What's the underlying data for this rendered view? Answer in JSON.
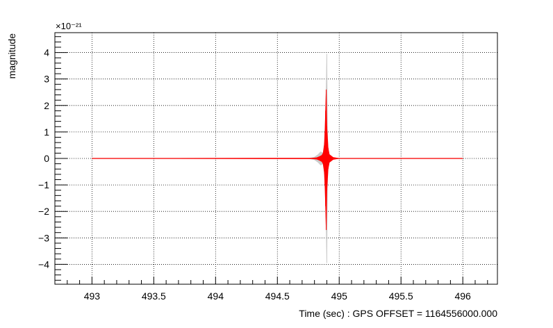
{
  "chart_data": {
    "type": "line",
    "title": "",
    "xlabel": "Time (sec) : GPS OFFSET = 1164556000.000",
    "ylabel": "magnitude",
    "y_exponent_label": "×10⁻²¹",
    "xlim": [
      492.7,
      496.28
    ],
    "ylim": [
      -4.75,
      4.75
    ],
    "grid": true,
    "x_ticks": [
      493,
      493.5,
      494,
      494.5,
      495,
      495.5,
      496
    ],
    "x_tick_labels": [
      "493",
      "493.5",
      "494",
      "494.5",
      "495",
      "495.5",
      "496"
    ],
    "y_ticks": [
      -4,
      -3,
      -2,
      -1,
      0,
      1,
      2,
      3,
      4
    ],
    "y_tick_labels": [
      "−4",
      "−3",
      "−2",
      "−1",
      "0",
      "1",
      "2",
      "3",
      "4"
    ],
    "series": [
      {
        "color": "#cccccc",
        "x": [
          493.0,
          494.75,
          494.8,
          494.83,
          494.85,
          494.87,
          494.88,
          494.89,
          494.9,
          494.905,
          494.91,
          494.92,
          494.95,
          495.0,
          496.0
        ],
        "y_max": [
          0,
          0,
          0.05,
          0.15,
          0.25,
          0.2,
          0.6,
          1.6,
          3.95,
          1.0,
          0.3,
          0.1,
          0.03,
          0,
          0
        ],
        "y_min": [
          0,
          0,
          -0.05,
          -0.15,
          -0.25,
          -0.2,
          -0.6,
          -1.6,
          -3.95,
          -1.0,
          -0.3,
          -0.1,
          -0.03,
          0,
          0
        ]
      },
      {
        "color": "#ff0000",
        "x": [
          493.0,
          494.78,
          494.82,
          494.84,
          494.86,
          494.87,
          494.88,
          494.885,
          494.89,
          494.895,
          494.9,
          494.91,
          494.92,
          494.95,
          495.0,
          496.0
        ],
        "y_max": [
          0,
          0.01,
          0.03,
          0.07,
          0.12,
          0.2,
          0.5,
          1.0,
          1.8,
          2.6,
          1.2,
          0.4,
          0.15,
          0.04,
          0,
          0
        ],
        "y_min": [
          0,
          -0.01,
          -0.03,
          -0.07,
          -0.12,
          -0.2,
          -0.5,
          -1.0,
          -1.8,
          -2.7,
          -1.2,
          -0.4,
          -0.15,
          -0.04,
          0,
          0
        ]
      }
    ]
  }
}
